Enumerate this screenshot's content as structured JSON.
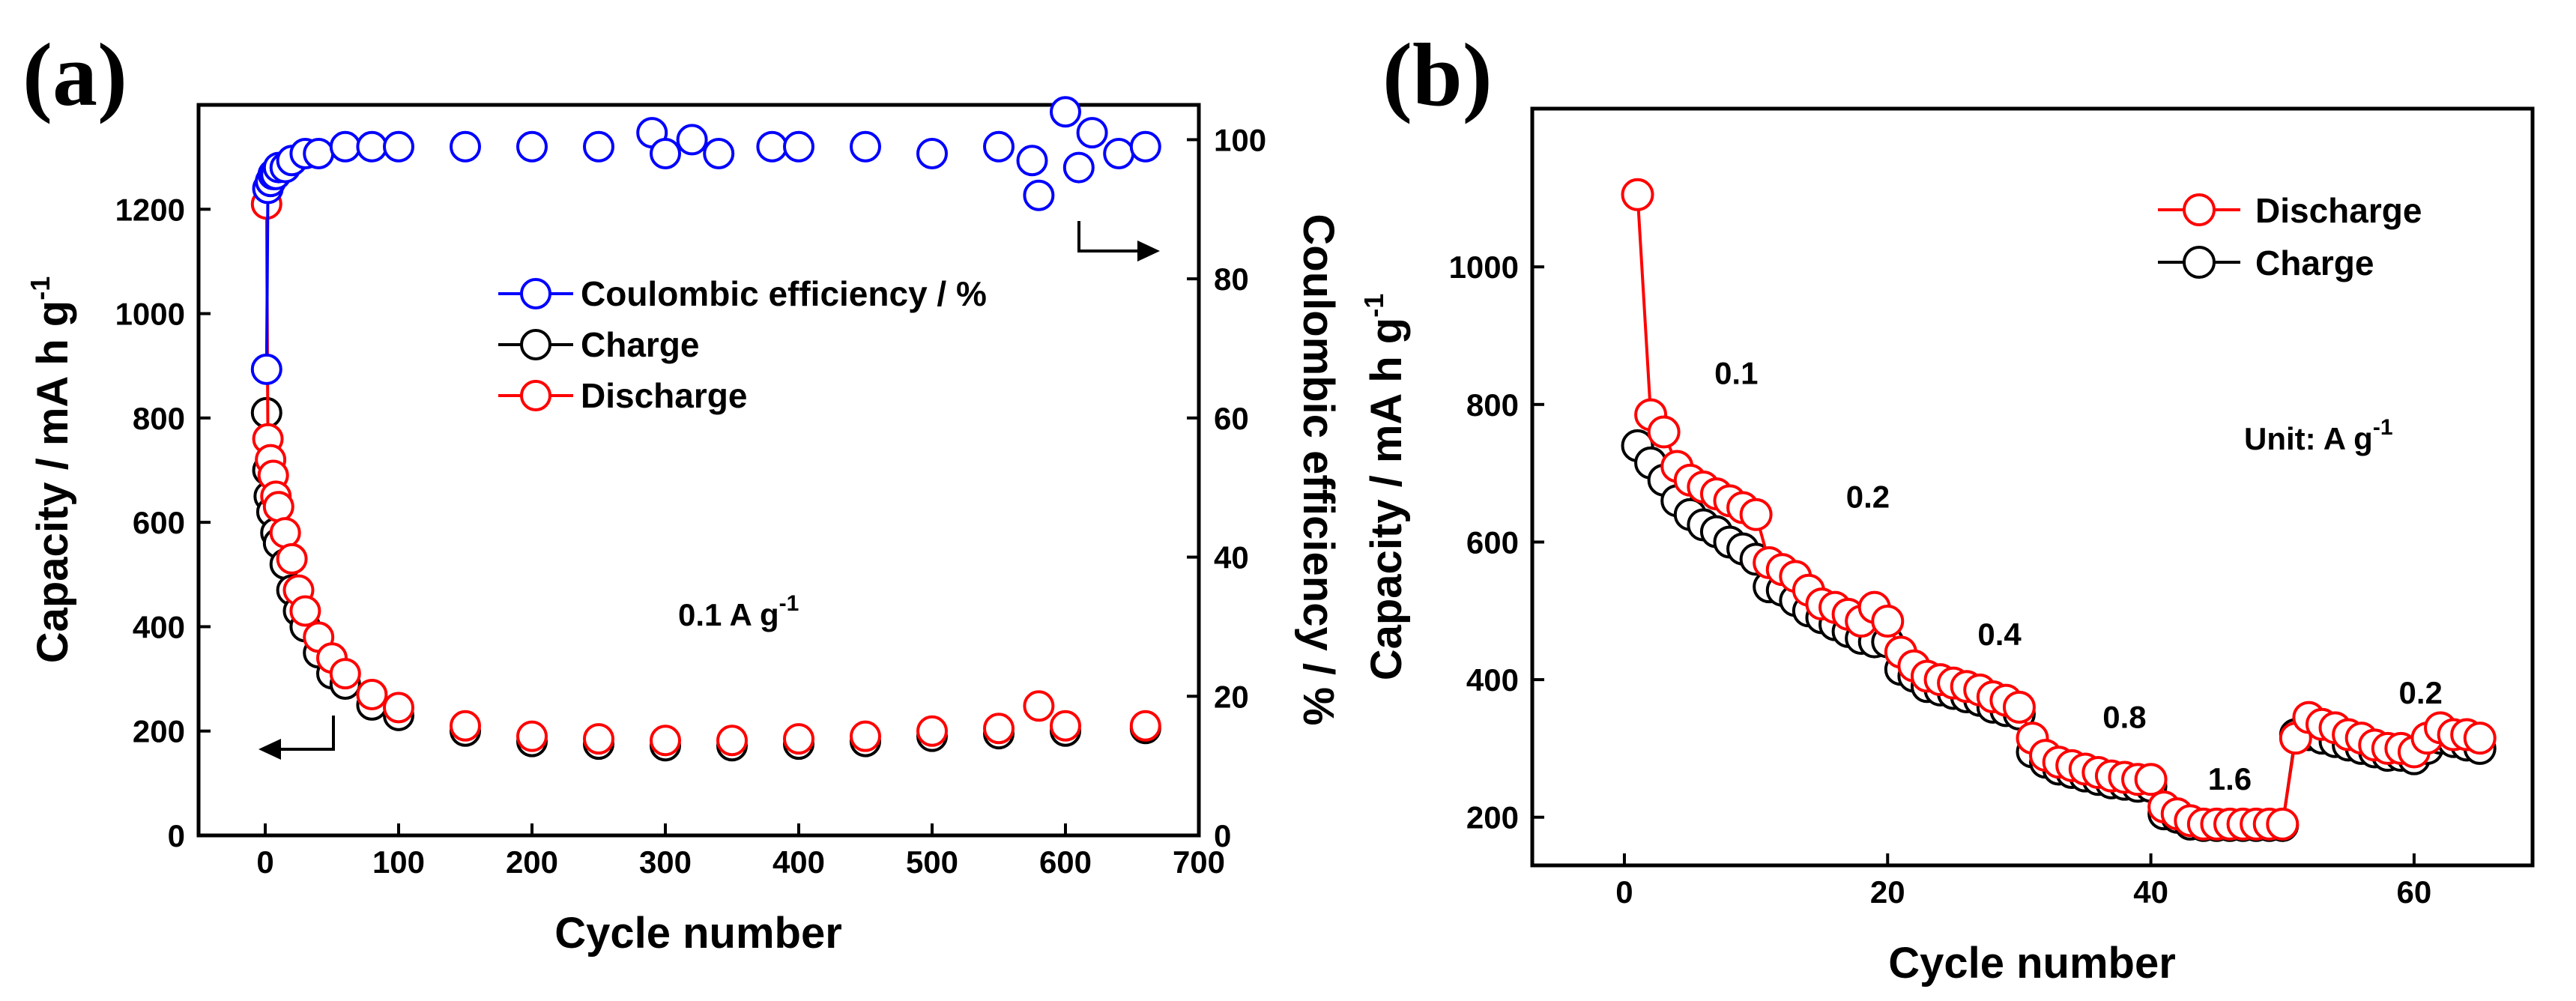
{
  "chart_data": [
    {
      "panel": "(a)",
      "type": "scatter",
      "xlabel": "Cycle number",
      "ylabel": "Capacity / mA h g",
      "ylabel_sup": "-1",
      "y2label": "Coulombic efficiency / %",
      "xlim": [
        -50,
        700
      ],
      "ylim": [
        0,
        1400
      ],
      "y2lim": [
        0,
        105
      ],
      "xticks": [
        0,
        100,
        200,
        300,
        400,
        500,
        600,
        700
      ],
      "yticks": [
        0,
        200,
        400,
        600,
        800,
        1000,
        1200
      ],
      "y2ticks": [
        0,
        20,
        40,
        60,
        80,
        100
      ],
      "annotation": "0.1 A g",
      "annotation_sup": "-1",
      "legend": [
        "Coulombic efficiency / %",
        "Charge",
        "Discharge"
      ],
      "series": [
        {
          "name": "Coulombic efficiency / %",
          "color": "#0000ff",
          "axis": "right",
          "x": [
            1,
            2,
            4,
            6,
            8,
            10,
            15,
            20,
            30,
            40,
            60,
            80,
            100,
            150,
            200,
            250,
            290,
            300,
            320,
            340,
            380,
            400,
            450,
            500,
            550,
            575,
            580,
            600,
            610,
            620,
            640,
            660
          ],
          "y": [
            67,
            93,
            94,
            95,
            95,
            96,
            96,
            97,
            98,
            98,
            99,
            99,
            99,
            99,
            99,
            99,
            101,
            98,
            100,
            98,
            99,
            99,
            99,
            98,
            99,
            97,
            92,
            104,
            96,
            101,
            98,
            99
          ]
        },
        {
          "name": "Charge",
          "color": "#000000",
          "axis": "left",
          "x": [
            1,
            2,
            3,
            5,
            8,
            10,
            15,
            20,
            25,
            30,
            40,
            50,
            60,
            80,
            100,
            150,
            200,
            250,
            300,
            350,
            400,
            450,
            500,
            550,
            600,
            660
          ],
          "y": [
            810,
            700,
            650,
            620,
            580,
            560,
            520,
            470,
            430,
            400,
            350,
            310,
            290,
            250,
            230,
            200,
            180,
            175,
            172,
            172,
            175,
            180,
            190,
            195,
            200,
            205
          ]
        },
        {
          "name": "Discharge",
          "color": "#ff0000",
          "axis": "left",
          "x": [
            1,
            2,
            4,
            6,
            8,
            10,
            15,
            20,
            25,
            30,
            40,
            50,
            60,
            80,
            100,
            150,
            200,
            250,
            300,
            350,
            400,
            450,
            500,
            550,
            580,
            600,
            660
          ],
          "y": [
            1210,
            760,
            720,
            690,
            650,
            630,
            580,
            530,
            470,
            430,
            380,
            340,
            310,
            270,
            245,
            210,
            190,
            185,
            182,
            182,
            185,
            190,
            200,
            205,
            248,
            210,
            210
          ]
        }
      ]
    },
    {
      "panel": "(b)",
      "type": "line",
      "xlabel": "Cycle number",
      "ylabel": "Capacity / mA h g",
      "ylabel_sup": "-1",
      "xlim": [
        -7,
        69
      ],
      "ylim": [
        130,
        1230
      ],
      "xticks": [
        0,
        20,
        40,
        60
      ],
      "yticks": [
        200,
        400,
        600,
        800,
        1000
      ],
      "unit_label": "Unit: A g",
      "unit_sup": "-1",
      "rate_labels": [
        {
          "text": "0.1",
          "x": 8.5,
          "y": 830
        },
        {
          "text": "0.2",
          "x": 18.5,
          "y": 650
        },
        {
          "text": "0.4",
          "x": 28.5,
          "y": 450
        },
        {
          "text": "0.8",
          "x": 38,
          "y": 330
        },
        {
          "text": "1.6",
          "x": 46,
          "y": 240
        },
        {
          "text": "0.2",
          "x": 60.5,
          "y": 365
        }
      ],
      "legend": [
        "Discharge",
        "Charge"
      ],
      "series": [
        {
          "name": "Discharge",
          "color": "#ff0000",
          "x": [
            1,
            2,
            3,
            4,
            5,
            6,
            7,
            8,
            9,
            10,
            11,
            12,
            13,
            14,
            15,
            16,
            17,
            18,
            19,
            20,
            21,
            22,
            23,
            24,
            25,
            26,
            27,
            28,
            29,
            30,
            31,
            32,
            33,
            34,
            35,
            36,
            37,
            38,
            39,
            40,
            41,
            42,
            43,
            44,
            45,
            46,
            47,
            48,
            49,
            50,
            51,
            52,
            53,
            54,
            55,
            56,
            57,
            58,
            59,
            60,
            61,
            62,
            63,
            64,
            65
          ],
          "y": [
            1105,
            785,
            760,
            710,
            690,
            680,
            670,
            660,
            650,
            640,
            570,
            560,
            550,
            530,
            510,
            505,
            495,
            485,
            505,
            485,
            440,
            420,
            405,
            400,
            395,
            390,
            385,
            375,
            370,
            360,
            315,
            290,
            280,
            275,
            270,
            265,
            260,
            258,
            255,
            255,
            215,
            205,
            195,
            190,
            190,
            190,
            190,
            190,
            190,
            190,
            315,
            345,
            335,
            330,
            320,
            315,
            305,
            300,
            300,
            295,
            315,
            330,
            320,
            320,
            315
          ]
        },
        {
          "name": "Charge",
          "color": "#000000",
          "x": [
            1,
            2,
            3,
            4,
            5,
            6,
            7,
            8,
            9,
            10,
            11,
            12,
            13,
            14,
            15,
            16,
            17,
            18,
            19,
            20,
            21,
            22,
            23,
            24,
            25,
            26,
            27,
            28,
            29,
            30,
            31,
            32,
            33,
            34,
            35,
            36,
            37,
            38,
            39,
            40,
            41,
            42,
            43,
            44,
            45,
            46,
            47,
            48,
            49,
            50,
            51,
            52,
            53,
            54,
            55,
            56,
            57,
            58,
            59,
            60,
            61,
            62,
            63,
            64,
            65
          ],
          "y": [
            740,
            715,
            690,
            660,
            640,
            625,
            615,
            600,
            590,
            575,
            535,
            530,
            515,
            500,
            490,
            480,
            470,
            460,
            455,
            455,
            415,
            405,
            390,
            385,
            380,
            375,
            370,
            360,
            355,
            350,
            295,
            280,
            270,
            265,
            260,
            255,
            250,
            248,
            245,
            245,
            205,
            200,
            190,
            188,
            188,
            188,
            188,
            188,
            188,
            188,
            320,
            320,
            315,
            310,
            305,
            300,
            295,
            290,
            290,
            285,
            300,
            315,
            310,
            305,
            300
          ]
        }
      ]
    }
  ]
}
